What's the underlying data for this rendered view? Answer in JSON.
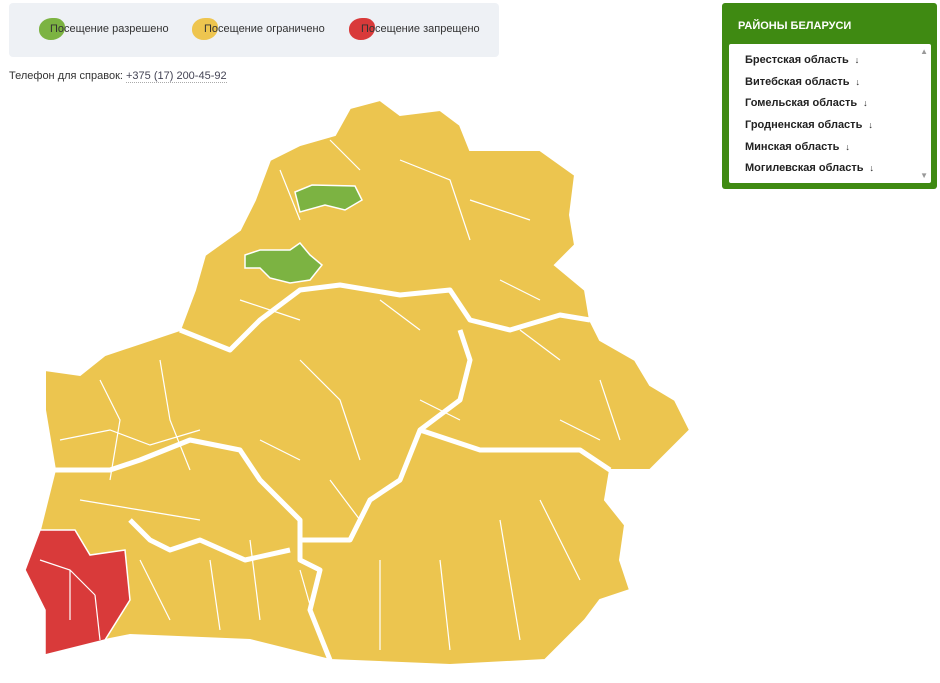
{
  "legend": [
    {
      "label": "Посещение разрешено",
      "color": "#7cb342"
    },
    {
      "label": "Посещение ограничено",
      "color": "#eec54f"
    },
    {
      "label": "Посещение запрещено",
      "color": "#d93a3a"
    }
  ],
  "phone": {
    "label": "Телефон для справок:",
    "number": "+375 (17) 200-45-92"
  },
  "panel": {
    "title": "РАЙОНЫ БЕЛАРУСИ",
    "items": [
      {
        "label": "Брестская область",
        "icon": "arrow-down-icon"
      },
      {
        "label": "Витебская область",
        "icon": "arrow-down-icon"
      },
      {
        "label": "Гомельская область",
        "icon": "arrow-down-icon"
      },
      {
        "label": "Гродненская область",
        "icon": "arrow-down-icon"
      },
      {
        "label": "Минская область",
        "icon": "arrow-down-icon"
      },
      {
        "label": "Могилевская область",
        "icon": "arrow-down-icon"
      }
    ],
    "accent": "#3f8a12"
  },
  "map": {
    "default_status": "Посещение ограничено",
    "colors": {
      "allowed": "#7cb342",
      "limited": "#eec54f",
      "forbidden": "#d93a3a"
    }
  }
}
